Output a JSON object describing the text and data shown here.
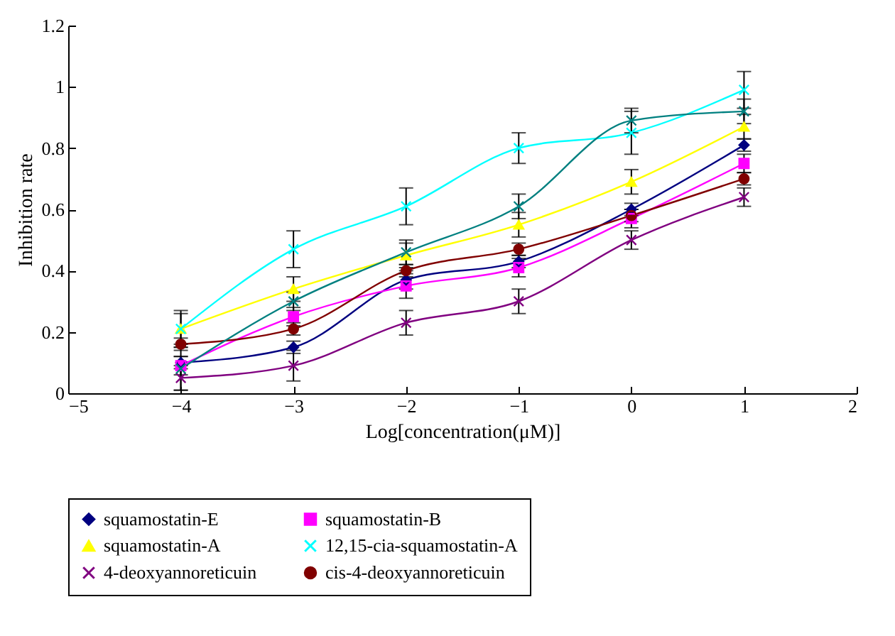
{
  "chart_data": {
    "type": "line",
    "xlabel": "Log[concentration(μM)]",
    "ylabel": "Inhibition rate",
    "x": [
      -4,
      -3,
      -2,
      -1,
      0,
      1
    ],
    "xlim": [
      -5,
      2
    ],
    "xticks": [
      -5,
      -4,
      -3,
      -2,
      -1,
      0,
      1,
      2
    ],
    "ylim": [
      0,
      1.2
    ],
    "yticks": [
      0,
      0.2,
      0.4,
      0.6,
      0.8,
      1,
      1.2
    ],
    "grid": false,
    "legend": "bottom",
    "line_style": "solid",
    "series": [
      {
        "name": "squamostatin-E",
        "color": "#000080",
        "marker": "diamond",
        "values": [
          0.1,
          0.15,
          0.37,
          0.43,
          0.6,
          0.81
        ],
        "errors": [
          0.02,
          0.02,
          0.03,
          0.02,
          0.02,
          0.02
        ]
      },
      {
        "name": "squamostatin-B",
        "color": "#ff00ff",
        "marker": "square",
        "values": [
          0.09,
          0.25,
          0.35,
          0.41,
          0.57,
          0.75
        ],
        "errors": [
          0.03,
          0.03,
          0.04,
          0.03,
          0.03,
          0.03
        ]
      },
      {
        "name": "squamostatin-A",
        "color": "#ffff00",
        "marker": "triangle",
        "values": [
          0.21,
          0.34,
          0.45,
          0.55,
          0.69,
          0.87
        ],
        "errors": [
          0.05,
          0.04,
          0.04,
          0.04,
          0.04,
          0.04
        ]
      },
      {
        "name": "12,15-cia-squamostatin-A",
        "color": "#00ffff",
        "marker": "cross",
        "values": [
          0.21,
          0.47,
          0.61,
          0.8,
          0.85,
          0.99
        ],
        "errors": [
          0.06,
          0.06,
          0.06,
          0.05,
          0.07,
          0.06
        ]
      },
      {
        "name": "4-deoxyannoreticuin",
        "color": "#800080",
        "marker": "cross",
        "values": [
          0.05,
          0.09,
          0.23,
          0.3,
          0.5,
          0.64
        ],
        "errors": [
          0.04,
          0.05,
          0.04,
          0.04,
          0.03,
          0.03
        ]
      },
      {
        "name": "cis-4-deoxyannoreticuin",
        "color": "#800000",
        "marker": "circle",
        "values": [
          0.16,
          0.21,
          0.4,
          0.47,
          0.58,
          0.7
        ],
        "errors": [
          0.02,
          0.02,
          0.02,
          0.02,
          0.02,
          0.02
        ]
      },
      {
        "color": "#008080",
        "marker": "cross",
        "values": [
          0.08,
          0.3,
          0.46,
          0.61,
          0.89,
          0.92
        ],
        "errors": [
          0.07,
          0.03,
          0.04,
          0.04,
          0.04,
          0.04
        ]
      }
    ]
  }
}
